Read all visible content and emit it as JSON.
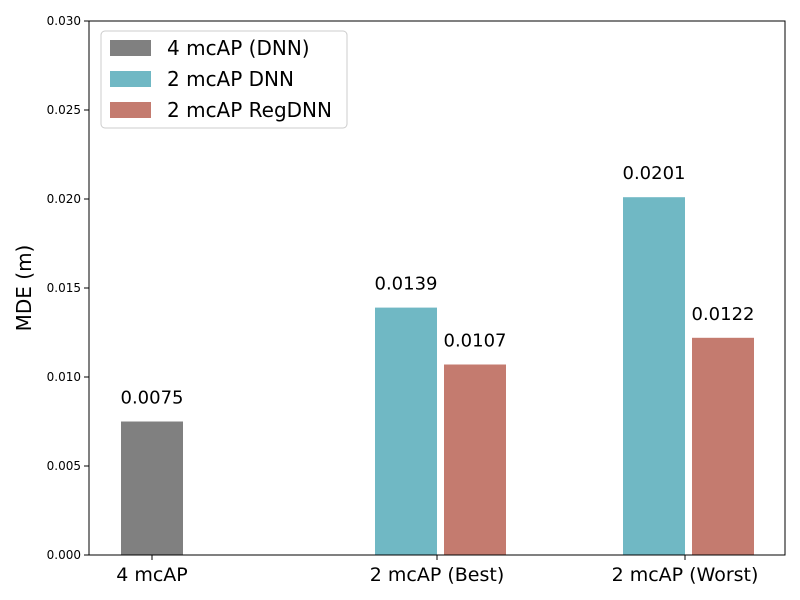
{
  "chart_data": {
    "type": "bar",
    "categories": [
      "4 mcAP",
      "2 mcAP (Best)",
      "2 mcAP (Worst)"
    ],
    "series": [
      {
        "name": "4 mcAP (DNN)",
        "color": "#808080",
        "values": [
          0.0075,
          null,
          null
        ],
        "labels": [
          "0.0075",
          null,
          null
        ]
      },
      {
        "name": "2 mcAP DNN",
        "color": "#70B8C4",
        "values": [
          null,
          0.0139,
          0.0201
        ],
        "labels": [
          null,
          "0.0139",
          "0.0201"
        ]
      },
      {
        "name": "2 mcAP RegDNN",
        "color": "#C47B6F",
        "values": [
          null,
          0.0107,
          0.0122
        ],
        "labels": [
          null,
          "0.0107",
          "0.0122"
        ]
      }
    ],
    "title": "",
    "xlabel": "",
    "ylabel": "MDE (m)",
    "ylim": [
      0,
      0.03
    ],
    "yticks": [
      0.0,
      0.005,
      0.01,
      0.015,
      0.02,
      0.025,
      0.03
    ],
    "ytick_labels": [
      "0.000",
      "0.005",
      "0.010",
      "0.015",
      "0.020",
      "0.025",
      "0.030"
    ],
    "grid": false,
    "legend_position": "top-left"
  }
}
